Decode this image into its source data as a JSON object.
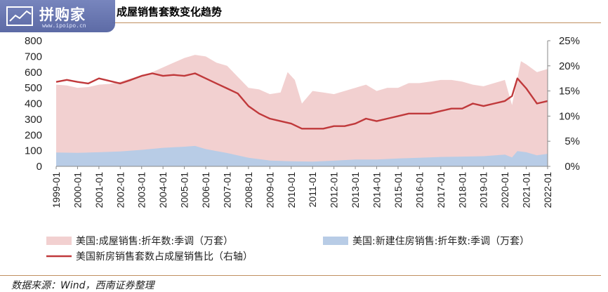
{
  "header": {
    "title": "成屋销售套数变化趋势",
    "logo_text": "拼购家",
    "logo_url_text": "www.ipoipo.cn"
  },
  "source": "数据来源：Wind，西南证券整理",
  "colors": {
    "existing": "#f2d0d0",
    "new": "#b8cce6",
    "ratio": "#c0393b",
    "axis": "#888888",
    "accent_line": "#c09060"
  },
  "chart_data": {
    "type": "area",
    "x_range": [
      "1999-01",
      "2022-01"
    ],
    "x_ticks": [
      "1999-01",
      "2000-01",
      "2001-01",
      "2002-01",
      "2003-01",
      "2004-01",
      "2005-01",
      "2006-01",
      "2007-01",
      "2008-01",
      "2009-01",
      "2010-01",
      "2011-01",
      "2012-01",
      "2013-01",
      "2014-01",
      "2015-01",
      "2016-01",
      "2017-01",
      "2018-01",
      "2019-01",
      "2020-01",
      "2021-01",
      "2022-01"
    ],
    "y_left": {
      "range": [
        0,
        800
      ],
      "ticks": [
        "0",
        "100",
        "200",
        "300",
        "400",
        "500",
        "600",
        "700",
        "800"
      ]
    },
    "y_right": {
      "range": [
        0,
        25
      ],
      "ticks": [
        "0%",
        "5%",
        "10%",
        "15%",
        "20%",
        "25%"
      ]
    },
    "series": [
      {
        "name": "美国:成屋销售:折年数:季调（万套）",
        "kind": "area",
        "axis": "left",
        "x": [
          "1999-01",
          "1999-07",
          "2000-01",
          "2000-07",
          "2001-01",
          "2001-07",
          "2002-01",
          "2002-07",
          "2003-01",
          "2003-07",
          "2004-01",
          "2004-07",
          "2005-01",
          "2005-07",
          "2006-01",
          "2006-07",
          "2007-01",
          "2007-07",
          "2008-01",
          "2008-07",
          "2009-01",
          "2009-07",
          "2009-11",
          "2010-03",
          "2010-07",
          "2011-01",
          "2011-07",
          "2012-01",
          "2012-07",
          "2013-01",
          "2013-07",
          "2014-01",
          "2014-07",
          "2015-01",
          "2015-07",
          "2016-01",
          "2016-07",
          "2017-01",
          "2017-07",
          "2018-01",
          "2018-07",
          "2019-01",
          "2019-07",
          "2020-01",
          "2020-05",
          "2020-10",
          "2021-01",
          "2021-07",
          "2022-01"
        ],
        "values": [
          520,
          515,
          500,
          505,
          520,
          525,
          540,
          560,
          580,
          600,
          630,
          660,
          690,
          710,
          700,
          660,
          640,
          570,
          500,
          490,
          460,
          470,
          600,
          550,
          400,
          480,
          470,
          460,
          480,
          500,
          520,
          480,
          500,
          500,
          530,
          530,
          540,
          550,
          550,
          540,
          520,
          510,
          530,
          550,
          390,
          670,
          650,
          600,
          620
        ]
      },
      {
        "name": "美国:新建住房销售:折年数:季调（万套）",
        "kind": "area",
        "axis": "left",
        "x": [
          "1999-01",
          "2000-01",
          "2001-01",
          "2002-01",
          "2003-01",
          "2004-01",
          "2005-01",
          "2005-07",
          "2006-01",
          "2007-01",
          "2008-01",
          "2009-01",
          "2010-01",
          "2011-01",
          "2012-01",
          "2013-01",
          "2014-01",
          "2015-01",
          "2016-01",
          "2017-01",
          "2018-01",
          "2019-01",
          "2020-01",
          "2020-05",
          "2020-08",
          "2021-01",
          "2021-07",
          "2022-01"
        ],
        "values": [
          88,
          86,
          90,
          95,
          105,
          118,
          125,
          130,
          110,
          85,
          55,
          37,
          32,
          30,
          36,
          44,
          44,
          50,
          55,
          60,
          62,
          65,
          75,
          57,
          97,
          90,
          70,
          80
        ]
      },
      {
        "name": "美国新房销售套数占成屋销售比（右轴）",
        "kind": "line",
        "axis": "right",
        "x": [
          "1999-01",
          "1999-07",
          "2000-01",
          "2000-07",
          "2001-01",
          "2001-07",
          "2002-01",
          "2002-07",
          "2003-01",
          "2003-07",
          "2004-01",
          "2004-07",
          "2005-01",
          "2005-07",
          "2006-01",
          "2006-07",
          "2007-01",
          "2007-07",
          "2008-01",
          "2008-07",
          "2009-01",
          "2009-07",
          "2010-01",
          "2010-07",
          "2011-01",
          "2011-07",
          "2012-01",
          "2012-07",
          "2013-01",
          "2013-07",
          "2014-01",
          "2014-07",
          "2015-01",
          "2015-07",
          "2016-01",
          "2016-07",
          "2017-01",
          "2017-07",
          "2018-01",
          "2018-07",
          "2019-01",
          "2019-07",
          "2020-01",
          "2020-05",
          "2020-08",
          "2021-01",
          "2021-07",
          "2022-01"
        ],
        "values": [
          16.8,
          17.2,
          16.8,
          16.5,
          17.5,
          17.0,
          16.5,
          17.2,
          18.0,
          18.5,
          18.0,
          18.2,
          18.0,
          18.5,
          17.5,
          16.5,
          15.5,
          14.5,
          12.0,
          10.5,
          9.5,
          9.0,
          8.5,
          7.5,
          7.5,
          7.5,
          8.0,
          8.0,
          8.5,
          9.5,
          9.0,
          9.5,
          10.0,
          10.5,
          10.5,
          10.5,
          11.0,
          11.5,
          11.5,
          12.5,
          12.0,
          12.5,
          13.0,
          14.0,
          17.5,
          15.5,
          12.5,
          13.0
        ]
      }
    ]
  }
}
